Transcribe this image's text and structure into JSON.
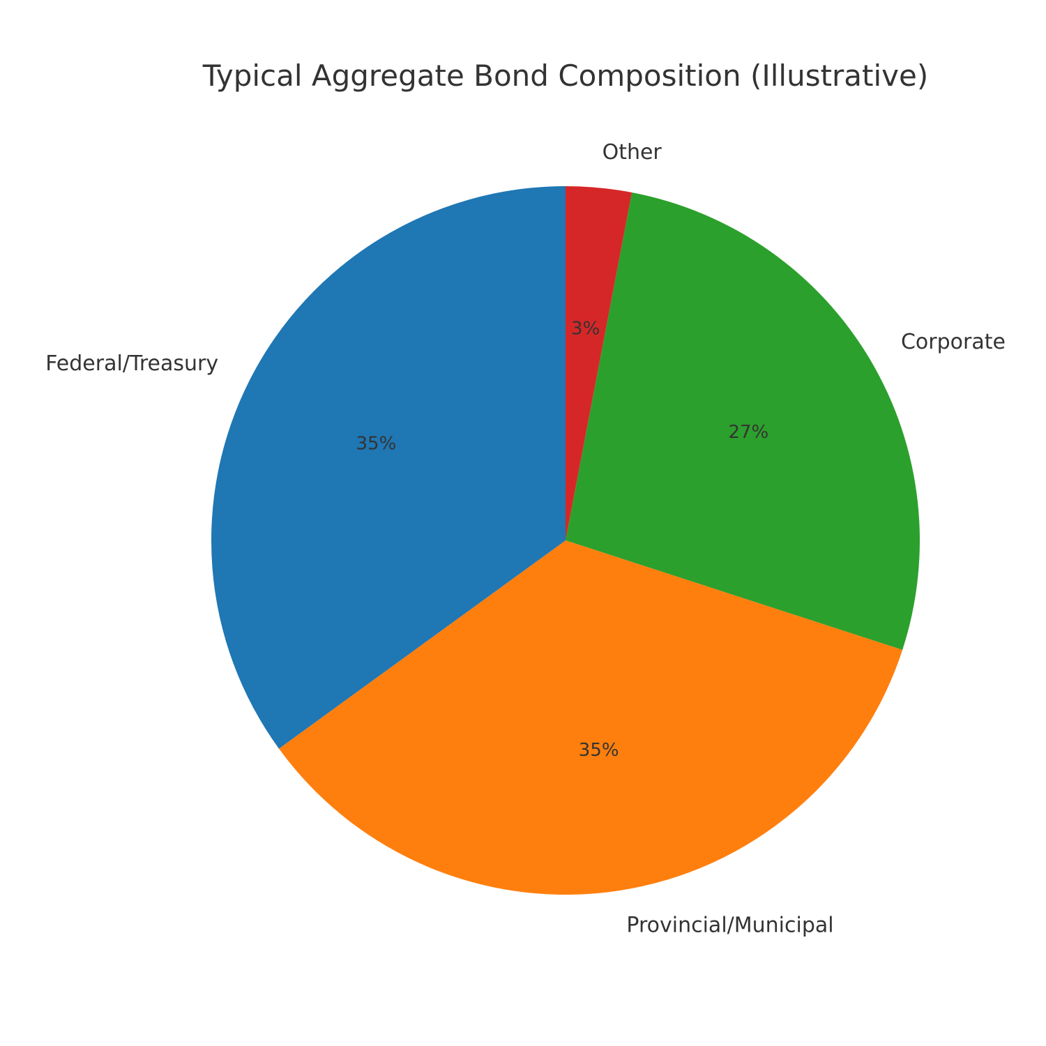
{
  "chart_data": {
    "type": "pie",
    "title": "Typical Aggregate Bond Composition (Illustrative)",
    "start_angle_deg": 90,
    "direction": "clockwise",
    "slices": [
      {
        "label": "Other",
        "value": 3,
        "pct_label": "3%",
        "color": "#d62728"
      },
      {
        "label": "Corporate",
        "value": 27,
        "pct_label": "27%",
        "color": "#2ca02c"
      },
      {
        "label": "Provincial/Municipal",
        "value": 35,
        "pct_label": "35%",
        "color": "#ff7f0e"
      },
      {
        "label": "Federal/Treasury",
        "value": 35,
        "pct_label": "35%",
        "color": "#1f77b4"
      }
    ]
  }
}
